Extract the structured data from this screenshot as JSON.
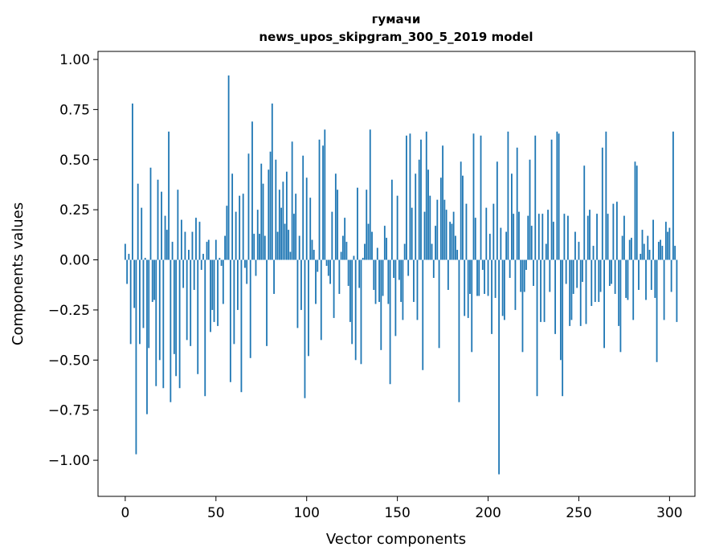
{
  "chart_data": {
    "type": "bar",
    "title": [
      "гумачи",
      "news_upos_skipgram_300_5_2019 model"
    ],
    "xlabel": "Vector components",
    "ylabel": "Components values",
    "xlim": [
      -15,
      314
    ],
    "ylim": [
      -1.18,
      1.04
    ],
    "xticks": [
      0,
      50,
      100,
      150,
      200,
      250,
      300
    ],
    "xtick_labels": [
      "0",
      "50",
      "100",
      "150",
      "200",
      "250",
      "300"
    ],
    "yticks": [
      1.0,
      0.75,
      0.5,
      0.25,
      0.0,
      -0.25,
      -0.5,
      -0.75,
      -1.0
    ],
    "ytick_labels": [
      "1.00",
      "0.75",
      "0.50",
      "0.25",
      "0.00",
      "−0.25",
      "−0.50",
      "−0.75",
      "−1.00"
    ],
    "grid": false,
    "colors": {
      "bar": "#1f77b4",
      "axis": "#000000",
      "background": "#ffffff"
    },
    "values": [
      0.08,
      -0.12,
      0.03,
      -0.42,
      0.78,
      -0.24,
      -0.97,
      0.38,
      -0.42,
      0.26,
      -0.34,
      0.01,
      -0.77,
      -0.44,
      0.46,
      -0.21,
      -0.2,
      -0.63,
      0.4,
      -0.5,
      0.34,
      -0.64,
      0.22,
      0.15,
      0.64,
      -0.71,
      0.09,
      -0.47,
      -0.58,
      0.35,
      -0.64,
      0.2,
      -0.14,
      0.14,
      -0.4,
      0.05,
      -0.43,
      0.14,
      -0.15,
      0.21,
      -0.57,
      0.19,
      -0.05,
      0.03,
      -0.68,
      0.09,
      0.1,
      -0.36,
      -0.25,
      -0.31,
      0.1,
      -0.33,
      0.01,
      -0.03,
      -0.22,
      0.12,
      0.27,
      0.92,
      -0.61,
      0.43,
      -0.42,
      0.24,
      -0.25,
      0.32,
      -0.66,
      0.33,
      -0.04,
      -0.12,
      0.53,
      -0.49,
      0.69,
      0.13,
      -0.08,
      0.25,
      0.13,
      0.48,
      0.38,
      0.12,
      -0.43,
      0.45,
      0.54,
      0.78,
      -0.17,
      0.5,
      0.14,
      0.35,
      0.26,
      0.39,
      0.18,
      0.44,
      0.15,
      0.04,
      0.59,
      0.23,
      0.33,
      -0.34,
      0.12,
      -0.25,
      0.52,
      -0.69,
      0.41,
      -0.48,
      0.31,
      0.1,
      0.05,
      -0.22,
      -0.06,
      0.6,
      -0.4,
      0.57,
      0.65,
      -0.03,
      -0.08,
      -0.12,
      0.24,
      -0.29,
      0.43,
      0.35,
      -0.17,
      0.04,
      0.12,
      0.21,
      0.09,
      -0.13,
      -0.31,
      -0.42,
      0.02,
      -0.5,
      0.36,
      -0.14,
      -0.52,
      0.01,
      0.08,
      0.35,
      0.18,
      0.65,
      0.14,
      -0.15,
      -0.22,
      0.06,
      -0.21,
      -0.45,
      -0.18,
      0.17,
      0.11,
      -0.22,
      -0.62,
      0.4,
      -0.09,
      -0.38,
      0.32,
      -0.1,
      -0.21,
      -0.3,
      0.08,
      0.62,
      -0.08,
      0.63,
      0.26,
      -0.21,
      0.43,
      -0.3,
      0.5,
      0.6,
      -0.55,
      0.24,
      0.64,
      0.45,
      0.32,
      0.08,
      -0.09,
      0.17,
      0.3,
      -0.44,
      0.41,
      0.57,
      0.3,
      0.25,
      -0.15,
      0.19,
      0.18,
      0.24,
      0.12,
      0.05,
      -0.71,
      0.49,
      0.42,
      -0.28,
      0.28,
      -0.29,
      -0.17,
      -0.46,
      0.63,
      0.21,
      -0.18,
      -0.18,
      0.62,
      -0.05,
      -0.17,
      0.26,
      -0.18,
      0.13,
      -0.37,
      0.28,
      -0.19,
      0.49,
      -1.07,
      0.16,
      -0.28,
      -0.3,
      0.14,
      0.64,
      -0.09,
      0.43,
      0.23,
      -0.25,
      0.56,
      0.24,
      -0.16,
      -0.46,
      -0.16,
      -0.05,
      0.22,
      0.5,
      0.17,
      -0.13,
      0.62,
      -0.68,
      0.23,
      -0.31,
      0.23,
      -0.31,
      0.08,
      0.25,
      -0.16,
      0.6,
      0.19,
      -0.37,
      0.64,
      0.63,
      -0.5,
      -0.68,
      0.23,
      -0.12,
      0.22,
      -0.33,
      -0.3,
      -0.17,
      0.14,
      -0.14,
      0.09,
      -0.33,
      -0.11,
      0.47,
      -0.32,
      0.22,
      0.25,
      -0.23,
      0.07,
      -0.21,
      0.23,
      -0.21,
      -0.16,
      0.56,
      -0.44,
      0.64,
      0.23,
      -0.13,
      -0.12,
      0.28,
      -0.17,
      0.29,
      -0.33,
      -0.46,
      0.12,
      0.22,
      -0.19,
      -0.2,
      0.1,
      0.11,
      -0.3,
      0.49,
      0.47,
      -0.15,
      0.03,
      0.15,
      0.08,
      -0.2,
      0.12,
      0.05,
      -0.15,
      0.2,
      -0.19,
      -0.51,
      0.09,
      0.1,
      0.07,
      -0.3,
      0.19,
      0.14,
      0.16,
      -0.16,
      0.64,
      0.07,
      -0.31
    ]
  }
}
